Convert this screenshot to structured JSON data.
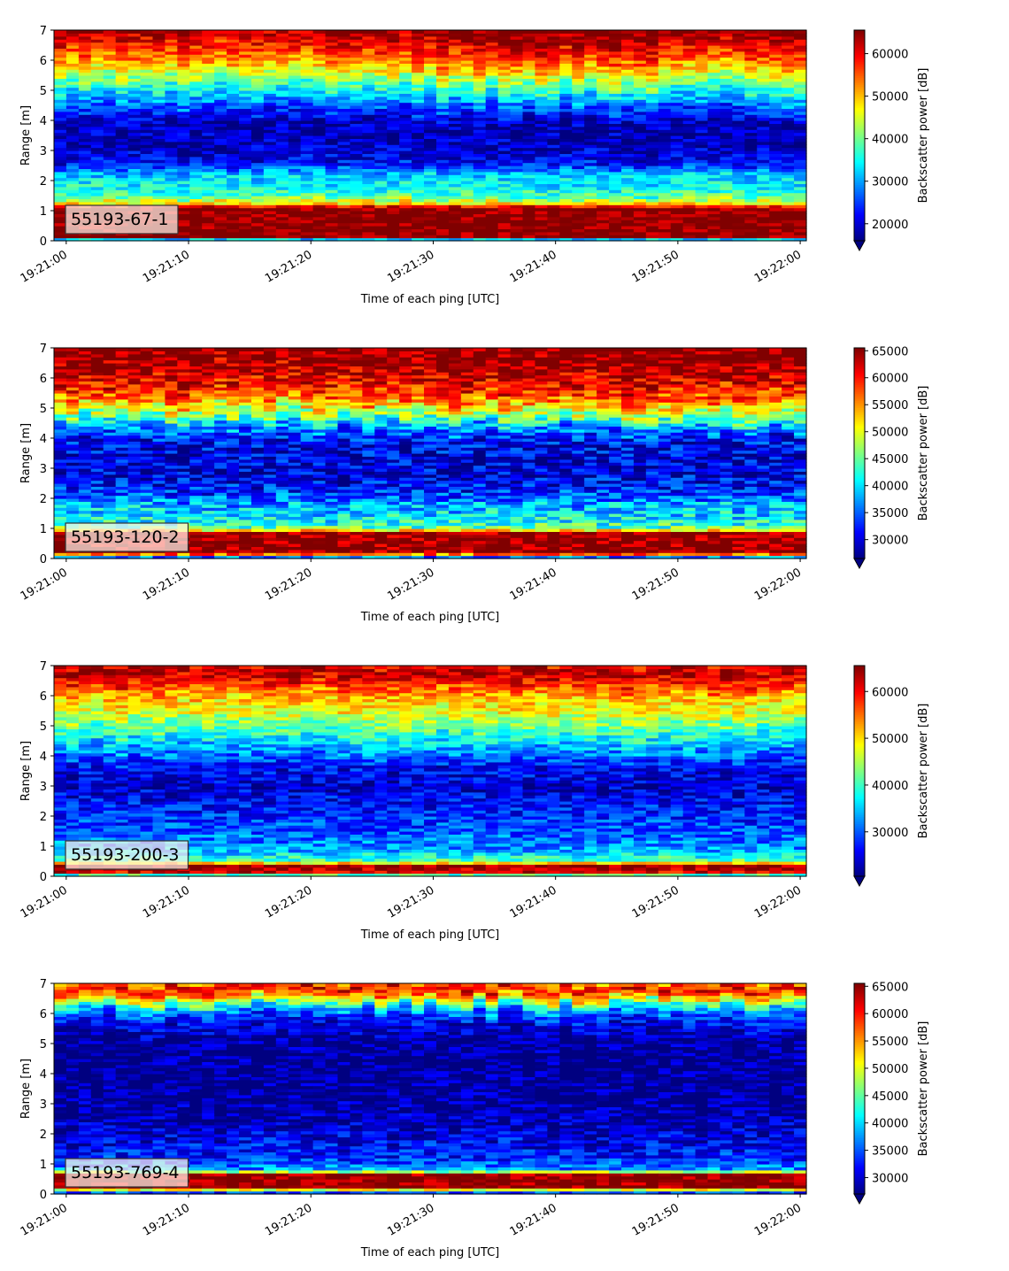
{
  "chart_data": [
    {
      "type": "heatmap",
      "label": "55193-67-1",
      "xlabel": "Time of each ping [UTC]",
      "ylabel": "Range [m]",
      "x_ticks": [
        "19:21:00",
        "19:21:10",
        "19:21:20",
        "19:21:30",
        "19:21:40",
        "19:21:50",
        "19:22:00"
      ],
      "y_ticks": [
        0,
        1,
        2,
        3,
        4,
        5,
        6,
        7
      ],
      "xlim": [
        "19:20:59",
        "19:22:00.5"
      ],
      "ylim": [
        0,
        7
      ],
      "colorbar": {
        "label": "Backscatter power [dB]",
        "vmin": 16000,
        "vmax": 65535,
        "ticks": [
          20000,
          30000,
          40000,
          50000,
          60000
        ],
        "colormap": "jet",
        "extend": "min"
      },
      "profile": [
        [
          0.0,
          16000
        ],
        [
          0.15,
          65535
        ],
        [
          1.1,
          65535
        ],
        [
          1.25,
          48000
        ],
        [
          1.5,
          38000
        ],
        [
          1.9,
          34000
        ],
        [
          2.2,
          32000
        ],
        [
          2.6,
          22000
        ],
        [
          3.2,
          19000
        ],
        [
          3.9,
          19000
        ],
        [
          4.3,
          24000
        ],
        [
          4.7,
          31000
        ],
        [
          5.1,
          38000
        ],
        [
          5.5,
          46000
        ],
        [
          5.9,
          54000
        ],
        [
          6.4,
          60000
        ],
        [
          6.8,
          65535
        ],
        [
          7.0,
          65535
        ]
      ],
      "profile_drift": [
        0.9,
        0.9,
        0.95,
        1.0,
        1.0,
        0.95
      ],
      "noise": 5000
    },
    {
      "type": "heatmap",
      "label": "55193-120-2",
      "xlabel": "Time of each ping [UTC]",
      "ylabel": "Range [m]",
      "x_ticks": [
        "19:21:00",
        "19:21:10",
        "19:21:20",
        "19:21:30",
        "19:21:40",
        "19:21:50",
        "19:22:00"
      ],
      "y_ticks": [
        0,
        1,
        2,
        3,
        4,
        5,
        6,
        7
      ],
      "xlim": [
        "19:20:59",
        "19:22:00.5"
      ],
      "ylim": [
        0,
        7
      ],
      "colorbar": {
        "label": "Backscatter power [dB]",
        "vmin": 26500,
        "vmax": 65535,
        "ticks": [
          30000,
          35000,
          40000,
          45000,
          50000,
          55000,
          60000,
          65000
        ],
        "colormap": "jet",
        "extend": "min"
      },
      "profile": [
        [
          0.0,
          26500
        ],
        [
          0.2,
          65535
        ],
        [
          0.85,
          65535
        ],
        [
          1.0,
          45000
        ],
        [
          1.3,
          41000
        ],
        [
          1.8,
          38000
        ],
        [
          2.2,
          33000
        ],
        [
          2.8,
          30000
        ],
        [
          3.4,
          30000
        ],
        [
          4.0,
          32000
        ],
        [
          4.4,
          38000
        ],
        [
          4.8,
          47000
        ],
        [
          5.2,
          55000
        ],
        [
          5.6,
          60000
        ],
        [
          6.1,
          63000
        ],
        [
          6.6,
          65535
        ],
        [
          7.0,
          65535
        ]
      ],
      "profile_drift": [
        1.0,
        0.9,
        0.95,
        1.0,
        1.0,
        1.0
      ],
      "noise": 5500
    },
    {
      "type": "heatmap",
      "label": "55193-200-3",
      "xlabel": "Time of each ping [UTC]",
      "ylabel": "Range [m]",
      "x_ticks": [
        "19:21:00",
        "19:21:10",
        "19:21:20",
        "19:21:30",
        "19:21:40",
        "19:21:50",
        "19:22:00"
      ],
      "y_ticks": [
        0,
        1,
        2,
        3,
        4,
        5,
        6,
        7
      ],
      "xlim": [
        "19:20:59",
        "19:22:00.5"
      ],
      "ylim": [
        0,
        7
      ],
      "colorbar": {
        "label": "Backscatter power [dB]",
        "vmin": 20500,
        "vmax": 65535,
        "ticks": [
          30000,
          40000,
          50000,
          60000
        ],
        "colormap": "jet",
        "extend": "min"
      },
      "profile": [
        [
          0.0,
          20500
        ],
        [
          0.1,
          60000
        ],
        [
          0.35,
          65535
        ],
        [
          0.5,
          42000
        ],
        [
          0.9,
          33000
        ],
        [
          1.5,
          30000
        ],
        [
          2.2,
          27000
        ],
        [
          3.0,
          24000
        ],
        [
          3.6,
          26000
        ],
        [
          4.2,
          33000
        ],
        [
          4.8,
          40000
        ],
        [
          5.4,
          47000
        ],
        [
          6.0,
          52000
        ],
        [
          6.5,
          60000
        ],
        [
          6.8,
          64000
        ],
        [
          7.0,
          60000
        ]
      ],
      "profile_drift": [
        1.0,
        1.0,
        1.0,
        1.0,
        1.0,
        1.0
      ],
      "noise": 5000
    },
    {
      "type": "heatmap",
      "label": "55193-769-4",
      "xlabel": "Time of each ping [UTC]",
      "ylabel": "Range [m]",
      "x_ticks": [
        "19:21:00",
        "19:21:10",
        "19:21:20",
        "19:21:30",
        "19:21:40",
        "19:21:50",
        "19:22:00"
      ],
      "y_ticks": [
        0,
        1,
        2,
        3,
        4,
        5,
        6,
        7
      ],
      "xlim": [
        "19:20:59",
        "19:22:00.5"
      ],
      "ylim": [
        0,
        7
      ],
      "colorbar": {
        "label": "Backscatter power [dB]",
        "vmin": 27000,
        "vmax": 65535,
        "ticks": [
          30000,
          35000,
          40000,
          45000,
          50000,
          55000,
          60000,
          65000
        ],
        "colormap": "jet",
        "extend": "min"
      },
      "profile": [
        [
          0.0,
          27000
        ],
        [
          0.25,
          65535
        ],
        [
          0.65,
          65535
        ],
        [
          0.8,
          38000
        ],
        [
          1.2,
          33000
        ],
        [
          1.8,
          31000
        ],
        [
          2.5,
          28500
        ],
        [
          3.5,
          27500
        ],
        [
          4.5,
          27500
        ],
        [
          5.2,
          28000
        ],
        [
          5.8,
          32000
        ],
        [
          6.2,
          40000
        ],
        [
          6.6,
          55000
        ],
        [
          6.85,
          62000
        ],
        [
          7.0,
          55000
        ]
      ],
      "profile_drift": [
        1.0,
        1.0,
        1.0,
        1.0,
        1.0,
        1.0
      ],
      "noise": 4500
    }
  ]
}
